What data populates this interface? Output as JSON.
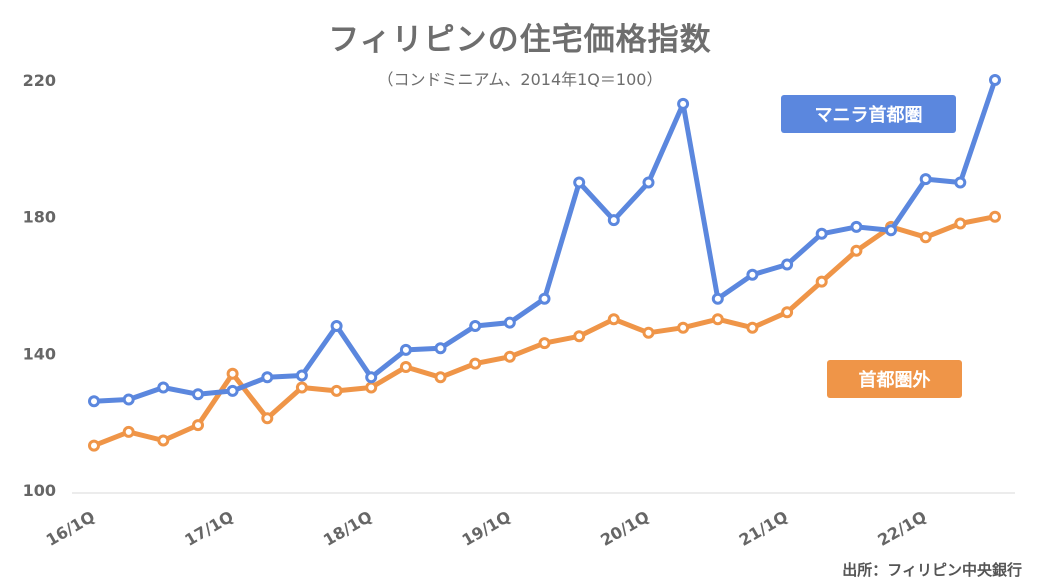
{
  "title": "フィリピンの住宅価格指数",
  "subtitle": "（コンドミニアム、2014年1Q＝100）",
  "source": "出所：フィリピン中央銀行",
  "colors": {
    "manila": "#5b87de",
    "outside": "#ef9548",
    "axis": "#d9d9d9",
    "text": "#666666"
  },
  "chart_data": {
    "type": "line",
    "title": "フィリピンの住宅価格指数",
    "subtitle": "（コンドミニアム、2014年1Q＝100）",
    "ylim": [
      100,
      220
    ],
    "yticks": [
      100,
      140,
      180,
      220
    ],
    "xticks": [
      "16/1Q",
      "17/1Q",
      "18/1Q",
      "19/1Q",
      "20/1Q",
      "21/1Q",
      "22/1Q"
    ],
    "x": [
      "16/1Q",
      "16/2Q",
      "16/3Q",
      "16/4Q",
      "17/1Q",
      "17/2Q",
      "17/3Q",
      "17/4Q",
      "18/1Q",
      "18/2Q",
      "18/3Q",
      "18/4Q",
      "19/1Q",
      "19/2Q",
      "19/3Q",
      "19/4Q",
      "20/1Q",
      "20/2Q",
      "20/3Q",
      "20/4Q",
      "21/1Q",
      "21/2Q",
      "21/3Q",
      "21/4Q",
      "22/1Q",
      "22/2Q",
      "22/3Q"
    ],
    "grid": false,
    "series": [
      {
        "name": "マニラ首都圏",
        "values": [
          126,
          126.5,
          130,
          128,
          129,
          133,
          133.5,
          148,
          133,
          141,
          141.5,
          148,
          149,
          156,
          190,
          179,
          190,
          213,
          156,
          163,
          166,
          175,
          177,
          176,
          191,
          190,
          220
        ]
      },
      {
        "name": "首都圏外",
        "values": [
          113,
          117,
          114.5,
          119,
          134,
          121,
          130,
          129,
          130,
          136,
          133,
          137,
          139,
          143,
          145,
          150,
          146,
          147.5,
          150,
          147.5,
          152,
          161,
          170,
          177,
          174,
          178,
          180
        ]
      }
    ]
  }
}
